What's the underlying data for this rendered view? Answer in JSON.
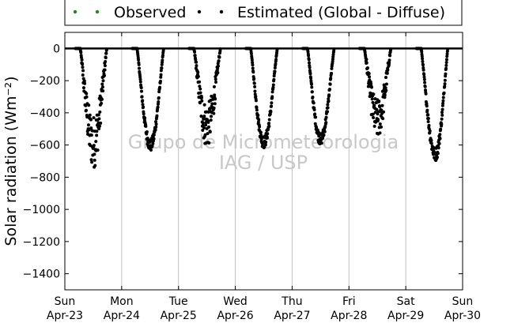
{
  "chart_data": {
    "type": "scatter",
    "title": "",
    "ylabel": "Solar radiation (Wm⁻²)",
    "ylim": [
      -1500,
      100
    ],
    "yticks": [
      0,
      -200,
      -400,
      -600,
      -800,
      -1000,
      -1200,
      -1400
    ],
    "xlim": [
      "2017-04-23",
      "2017-04-30"
    ],
    "xtick_labels": [
      {
        "day": "Sun",
        "date": "Apr-23"
      },
      {
        "day": "Mon",
        "date": "Apr-24"
      },
      {
        "day": "Tue",
        "date": "Apr-25"
      },
      {
        "day": "Wed",
        "date": "Apr-26"
      },
      {
        "day": "Thu",
        "date": "Apr-27"
      },
      {
        "day": "Fri",
        "date": "Apr-28"
      },
      {
        "day": "Sat",
        "date": "Apr-29"
      },
      {
        "day": "Sun",
        "date": "Apr-30"
      }
    ],
    "grid": "vertical",
    "zero_line": true,
    "legend_placement": "top",
    "watermark": [
      "Grupo de Micrometeorologia",
      "IAG / USP"
    ],
    "series": [
      {
        "name": "Observed",
        "color": "#1a8a1a",
        "marker": "dot",
        "points": []
      },
      {
        "name": "Estimated (Global - Diffuse)",
        "color": "#000000",
        "marker": "dot",
        "daily_profile": [
          {
            "day": "Apr-23",
            "sunrise": "06:30",
            "sunset": "17:45",
            "peak_time": "12:00",
            "min_value": -750
          },
          {
            "day": "Apr-24",
            "sunrise": "06:30",
            "sunset": "17:45",
            "peak_time": "12:10",
            "min_value": -640
          },
          {
            "day": "Apr-25",
            "sunrise": "06:30",
            "sunset": "17:45",
            "peak_time": "12:00",
            "min_value": -620
          },
          {
            "day": "Apr-26",
            "sunrise": "06:30",
            "sunset": "17:45",
            "peak_time": "12:00",
            "min_value": -620
          },
          {
            "day": "Apr-27",
            "sunrise": "06:30",
            "sunset": "17:45",
            "peak_time": "12:00",
            "min_value": -600
          },
          {
            "day": "Apr-28",
            "sunrise": "06:30",
            "sunset": "17:45",
            "peak_time": "12:00",
            "min_value": -570
          },
          {
            "day": "Apr-29",
            "sunrise": "06:30",
            "sunset": "17:45",
            "peak_time": "12:30",
            "min_value": -700
          }
        ]
      }
    ]
  }
}
